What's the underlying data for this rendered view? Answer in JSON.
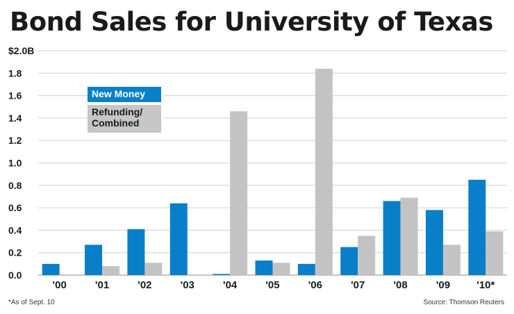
{
  "title": "Bond Sales for University of Texas",
  "footnote": "*As of Sept. 10",
  "source": "Source: Thomson Reuters",
  "colors": {
    "new_money": "#0a7fc9",
    "refunding": "#c3c3c3",
    "grid": "#cfcfcf",
    "text": "#1a1a1a"
  },
  "chart_data": {
    "type": "bar",
    "title": "Bond Sales for University of Texas",
    "xlabel": "",
    "ylabel": "",
    "ylim": [
      0,
      2.0
    ],
    "yticks": [
      0,
      0.2,
      0.4,
      0.6,
      0.8,
      1.0,
      1.2,
      1.4,
      1.6,
      1.8,
      2.0
    ],
    "ytick_labels": [
      "0.0",
      "0.2",
      "0.4",
      "0.6",
      "0.8",
      "1.0",
      "1.2",
      "1.4",
      "1.6",
      "1.8",
      "$2.0B"
    ],
    "grid": true,
    "legend_position": "upper-left",
    "categories": [
      "'00",
      "'01",
      "'02",
      "'03",
      "'04",
      "'05",
      "'06",
      "'07",
      "'08",
      "'09",
      "'10*"
    ],
    "series": [
      {
        "name": "New Money",
        "values": [
          0.1,
          0.27,
          0.41,
          0.64,
          0.01,
          0.13,
          0.1,
          0.25,
          0.66,
          0.58,
          0.85
        ]
      },
      {
        "name": "Refunding/ Combined",
        "values": [
          0,
          0.08,
          0.11,
          0,
          1.46,
          0.11,
          1.84,
          0.35,
          0.69,
          0.27,
          0.39
        ]
      }
    ]
  },
  "legend": {
    "new_money": "New Money",
    "refunding_line1": "Refunding/",
    "refunding_line2": "Combined"
  }
}
